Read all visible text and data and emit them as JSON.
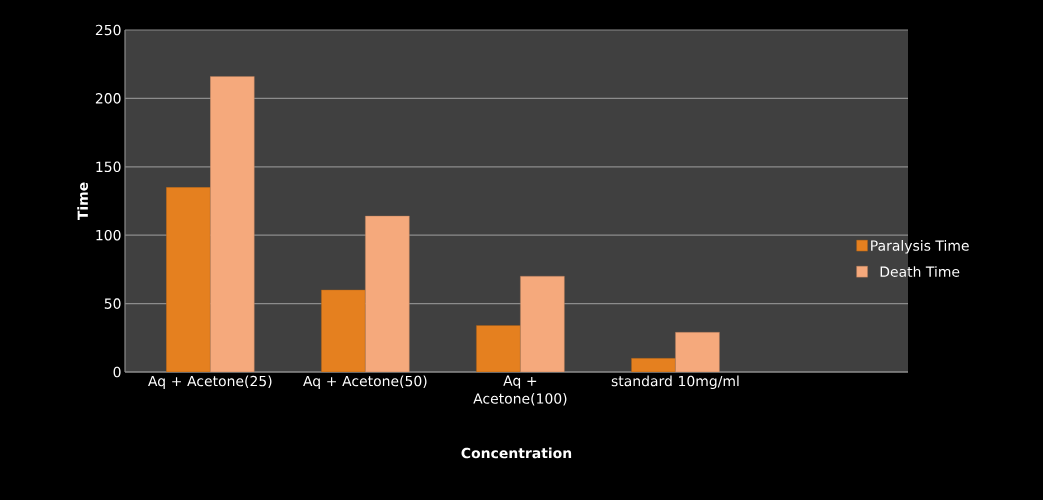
{
  "chart_data": {
    "type": "bar",
    "xlabel": "Concentration",
    "ylabel": "Time",
    "categories": [
      "Aq + Acetone(25)",
      "Aq + Acetone(50)",
      "Aq + Acetone(100)",
      "standard 10mg/ml"
    ],
    "series": [
      {
        "name": "Paralysis Time",
        "color": "#e5801f",
        "values": [
          135,
          60,
          34,
          10
        ]
      },
      {
        "name": "Death Time",
        "color": "#f5a97c",
        "values": [
          216,
          114,
          70,
          29
        ]
      }
    ],
    "ylim": [
      0,
      250
    ],
    "yticks": [
      0,
      50,
      100,
      150,
      200,
      250
    ],
    "grid": "y",
    "legend": "right"
  }
}
